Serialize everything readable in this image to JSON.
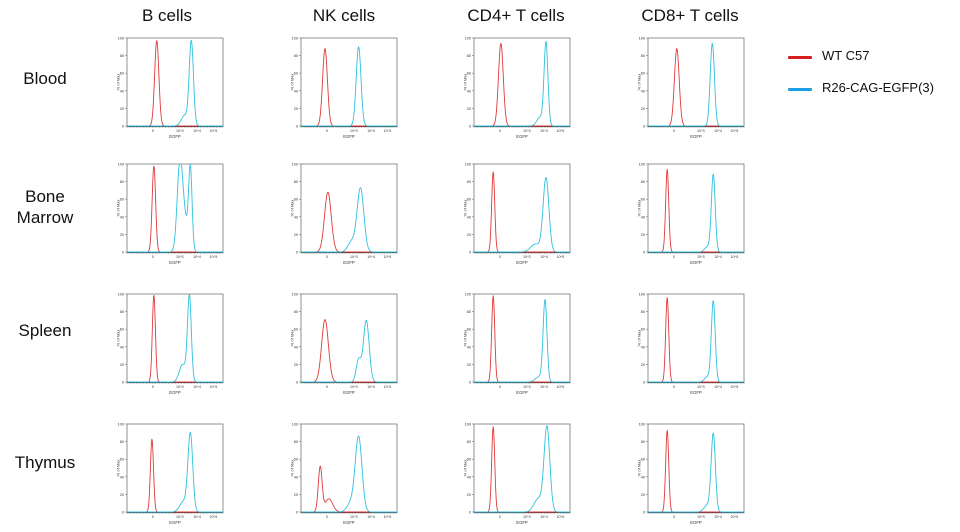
{
  "colors": {
    "wt": "#e0393a",
    "egfp": "#2fc1de",
    "legend_wt": "#d81f1f",
    "legend_egfp": "#1b9fe2"
  },
  "legend": {
    "wt": "WT C57",
    "egfp": "R26-CAG-EGFP(3)"
  },
  "columns": [
    "B cells",
    "NK cells",
    "CD4+ T cells",
    "CD8+ T cells"
  ],
  "rows": [
    {
      "label_lines": [
        "Blood"
      ]
    },
    {
      "label_lines": [
        "Bone",
        "Marrow"
      ]
    },
    {
      "label_lines": [
        "Spleen"
      ]
    },
    {
      "label_lines": [
        "Thymus"
      ]
    }
  ],
  "chart_data": {
    "type": "histogram-grid",
    "xlabel": "EGFP",
    "ylabel": "% of Max",
    "ylim": [
      0,
      100
    ],
    "yticks": [
      "0",
      "20",
      "40",
      "60",
      "80",
      "100"
    ],
    "xticks": [
      "0",
      "10^3",
      "10^4",
      "10^5"
    ],
    "x_domain": [
      0,
      1
    ],
    "panels": [
      {
        "row": "Blood",
        "column": "B cells",
        "series": [
          {
            "name": "WT C57",
            "peaks": [
              {
                "x": 0.31,
                "h": 97,
                "w": 0.022
              }
            ]
          },
          {
            "name": "R26-CAG-EGFP(3)",
            "peaks": [
              {
                "x": 0.67,
                "h": 96,
                "w": 0.022
              },
              {
                "x": 0.6,
                "h": 12,
                "w": 0.035
              }
            ]
          }
        ]
      },
      {
        "row": "Blood",
        "column": "NK cells",
        "series": [
          {
            "name": "WT C57",
            "peaks": [
              {
                "x": 0.25,
                "h": 88,
                "w": 0.025
              }
            ]
          },
          {
            "name": "R26-CAG-EGFP(3)",
            "peaks": [
              {
                "x": 0.6,
                "h": 90,
                "w": 0.025
              }
            ]
          }
        ]
      },
      {
        "row": "Blood",
        "column": "CD4+ T cells",
        "series": [
          {
            "name": "WT C57",
            "peaks": [
              {
                "x": 0.28,
                "h": 94,
                "w": 0.025
              }
            ]
          },
          {
            "name": "R26-CAG-EGFP(3)",
            "peaks": [
              {
                "x": 0.75,
                "h": 94,
                "w": 0.02
              },
              {
                "x": 0.69,
                "h": 10,
                "w": 0.035
              }
            ]
          }
        ]
      },
      {
        "row": "Blood",
        "column": "CD8+ T cells",
        "series": [
          {
            "name": "WT C57",
            "peaks": [
              {
                "x": 0.3,
                "h": 88,
                "w": 0.025
              }
            ]
          },
          {
            "name": "R26-CAG-EGFP(3)",
            "peaks": [
              {
                "x": 0.67,
                "h": 94,
                "w": 0.022
              }
            ]
          }
        ]
      },
      {
        "row": "Bone Marrow",
        "column": "B cells",
        "series": [
          {
            "name": "WT C57",
            "peaks": [
              {
                "x": 0.28,
                "h": 98,
                "w": 0.018
              }
            ]
          },
          {
            "name": "R26-CAG-EGFP(3)",
            "peaks": [
              {
                "x": 0.55,
                "h": 94,
                "w": 0.028
              },
              {
                "x": 0.66,
                "h": 91,
                "w": 0.018
              },
              {
                "x": 0.6,
                "h": 35,
                "w": 0.035
              }
            ]
          }
        ]
      },
      {
        "row": "Bone Marrow",
        "column": "NK cells",
        "series": [
          {
            "name": "WT C57",
            "peaks": [
              {
                "x": 0.28,
                "h": 68,
                "w": 0.035
              }
            ]
          },
          {
            "name": "R26-CAG-EGFP(3)",
            "peaks": [
              {
                "x": 0.62,
                "h": 72,
                "w": 0.035
              },
              {
                "x": 0.53,
                "h": 12,
                "w": 0.04
              }
            ]
          }
        ]
      },
      {
        "row": "Bone Marrow",
        "column": "CD4+ T cells",
        "series": [
          {
            "name": "WT C57",
            "peaks": [
              {
                "x": 0.2,
                "h": 91,
                "w": 0.016
              }
            ]
          },
          {
            "name": "R26-CAG-EGFP(3)",
            "peaks": [
              {
                "x": 0.75,
                "h": 84,
                "w": 0.03
              },
              {
                "x": 0.64,
                "h": 9,
                "w": 0.05
              }
            ]
          }
        ]
      },
      {
        "row": "Bone Marrow",
        "column": "CD8+ T cells",
        "series": [
          {
            "name": "WT C57",
            "peaks": [
              {
                "x": 0.2,
                "h": 94,
                "w": 0.016
              }
            ]
          },
          {
            "name": "R26-CAG-EGFP(3)",
            "peaks": [
              {
                "x": 0.68,
                "h": 88,
                "w": 0.02
              },
              {
                "x": 0.62,
                "h": 6,
                "w": 0.03
              }
            ]
          }
        ]
      },
      {
        "row": "Spleen",
        "column": "B cells",
        "series": [
          {
            "name": "WT C57",
            "peaks": [
              {
                "x": 0.28,
                "h": 99,
                "w": 0.016
              }
            ]
          },
          {
            "name": "R26-CAG-EGFP(3)",
            "peaks": [
              {
                "x": 0.65,
                "h": 97,
                "w": 0.02
              },
              {
                "x": 0.58,
                "h": 20,
                "w": 0.035
              }
            ]
          }
        ]
      },
      {
        "row": "Spleen",
        "column": "NK cells",
        "series": [
          {
            "name": "WT C57",
            "peaks": [
              {
                "x": 0.25,
                "h": 71,
                "w": 0.035
              }
            ]
          },
          {
            "name": "R26-CAG-EGFP(3)",
            "peaks": [
              {
                "x": 0.68,
                "h": 70,
                "w": 0.03
              },
              {
                "x": 0.6,
                "h": 25,
                "w": 0.025
              }
            ]
          }
        ]
      },
      {
        "row": "Spleen",
        "column": "CD4+ T cells",
        "series": [
          {
            "name": "WT C57",
            "peaks": [
              {
                "x": 0.2,
                "h": 98,
                "w": 0.016
              }
            ]
          },
          {
            "name": "R26-CAG-EGFP(3)",
            "peaks": [
              {
                "x": 0.74,
                "h": 92,
                "w": 0.02
              },
              {
                "x": 0.68,
                "h": 6,
                "w": 0.04
              }
            ]
          }
        ]
      },
      {
        "row": "Spleen",
        "column": "CD8+ T cells",
        "series": [
          {
            "name": "WT C57",
            "peaks": [
              {
                "x": 0.2,
                "h": 96,
                "w": 0.016
              }
            ]
          },
          {
            "name": "R26-CAG-EGFP(3)",
            "peaks": [
              {
                "x": 0.68,
                "h": 92,
                "w": 0.02
              },
              {
                "x": 0.62,
                "h": 6,
                "w": 0.03
              }
            ]
          }
        ]
      },
      {
        "row": "Thymus",
        "column": "B cells",
        "series": [
          {
            "name": "WT C57",
            "peaks": [
              {
                "x": 0.26,
                "h": 83,
                "w": 0.016
              }
            ]
          },
          {
            "name": "R26-CAG-EGFP(3)",
            "peaks": [
              {
                "x": 0.66,
                "h": 88,
                "w": 0.025
              },
              {
                "x": 0.59,
                "h": 12,
                "w": 0.04
              }
            ]
          }
        ]
      },
      {
        "row": "Thymus",
        "column": "NK cells",
        "series": [
          {
            "name": "WT C57",
            "peaks": [
              {
                "x": 0.2,
                "h": 51,
                "w": 0.02
              },
              {
                "x": 0.29,
                "h": 15,
                "w": 0.04
              }
            ]
          },
          {
            "name": "R26-CAG-EGFP(3)",
            "peaks": [
              {
                "x": 0.6,
                "h": 85,
                "w": 0.035
              },
              {
                "x": 0.52,
                "h": 10,
                "w": 0.04
              }
            ]
          }
        ]
      },
      {
        "row": "Thymus",
        "column": "CD4+ T cells",
        "series": [
          {
            "name": "WT C57",
            "peaks": [
              {
                "x": 0.2,
                "h": 97,
                "w": 0.016
              }
            ]
          },
          {
            "name": "R26-CAG-EGFP(3)",
            "peaks": [
              {
                "x": 0.76,
                "h": 96,
                "w": 0.03
              },
              {
                "x": 0.67,
                "h": 15,
                "w": 0.045
              }
            ]
          }
        ]
      },
      {
        "row": "Thymus",
        "column": "CD8+ T cells",
        "series": [
          {
            "name": "WT C57",
            "peaks": [
              {
                "x": 0.2,
                "h": 93,
                "w": 0.016
              }
            ]
          },
          {
            "name": "R26-CAG-EGFP(3)",
            "peaks": [
              {
                "x": 0.68,
                "h": 88,
                "w": 0.022
              },
              {
                "x": 0.62,
                "h": 8,
                "w": 0.035
              }
            ]
          }
        ]
      }
    ]
  }
}
